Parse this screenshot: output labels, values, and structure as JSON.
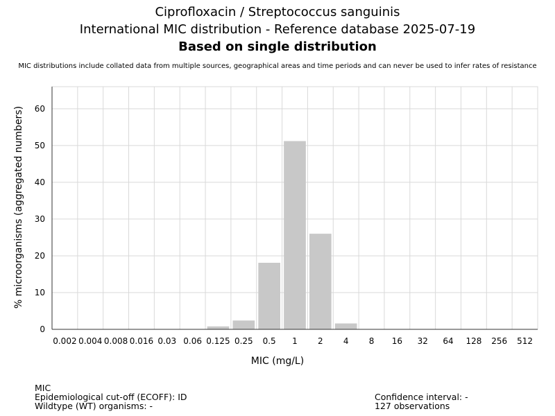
{
  "chart_data": {
    "type": "bar",
    "title": "Ciprofloxacin / Streptococcus sanguinis",
    "subtitle": "International MIC distribution - Reference database 2025-07-19",
    "subtitle2": "Based on single distribution",
    "note": "MIC distributions include collated data from multiple sources, geographical areas and time periods and can never be used to infer rates of resistance",
    "xlabel": "MIC (mg/L)",
    "ylabel": "% microorganisms (aggregated numbers)",
    "categories": [
      "0.002",
      "0.004",
      "0.008",
      "0.016",
      "0.03",
      "0.06",
      "0.125",
      "0.25",
      "0.5",
      "1",
      "2",
      "4",
      "8",
      "16",
      "32",
      "64",
      "128",
      "256",
      "512"
    ],
    "values": [
      0,
      0,
      0,
      0,
      0,
      0,
      0.8,
      2.4,
      18.1,
      51.2,
      26.0,
      1.6,
      0,
      0,
      0,
      0,
      0,
      0,
      0
    ],
    "ylim": [
      0,
      66
    ],
    "yticks": [
      0,
      10,
      20,
      30,
      40,
      50,
      60
    ],
    "grid": true,
    "bar_color": "#c8c8c8"
  },
  "footer": {
    "line1": "MIC",
    "line2": "Epidemiological cut-off (ECOFF): ID",
    "line3": "Wildtype (WT) organisms:  -",
    "confidence": "Confidence interval: -",
    "observations": "127 observations"
  }
}
